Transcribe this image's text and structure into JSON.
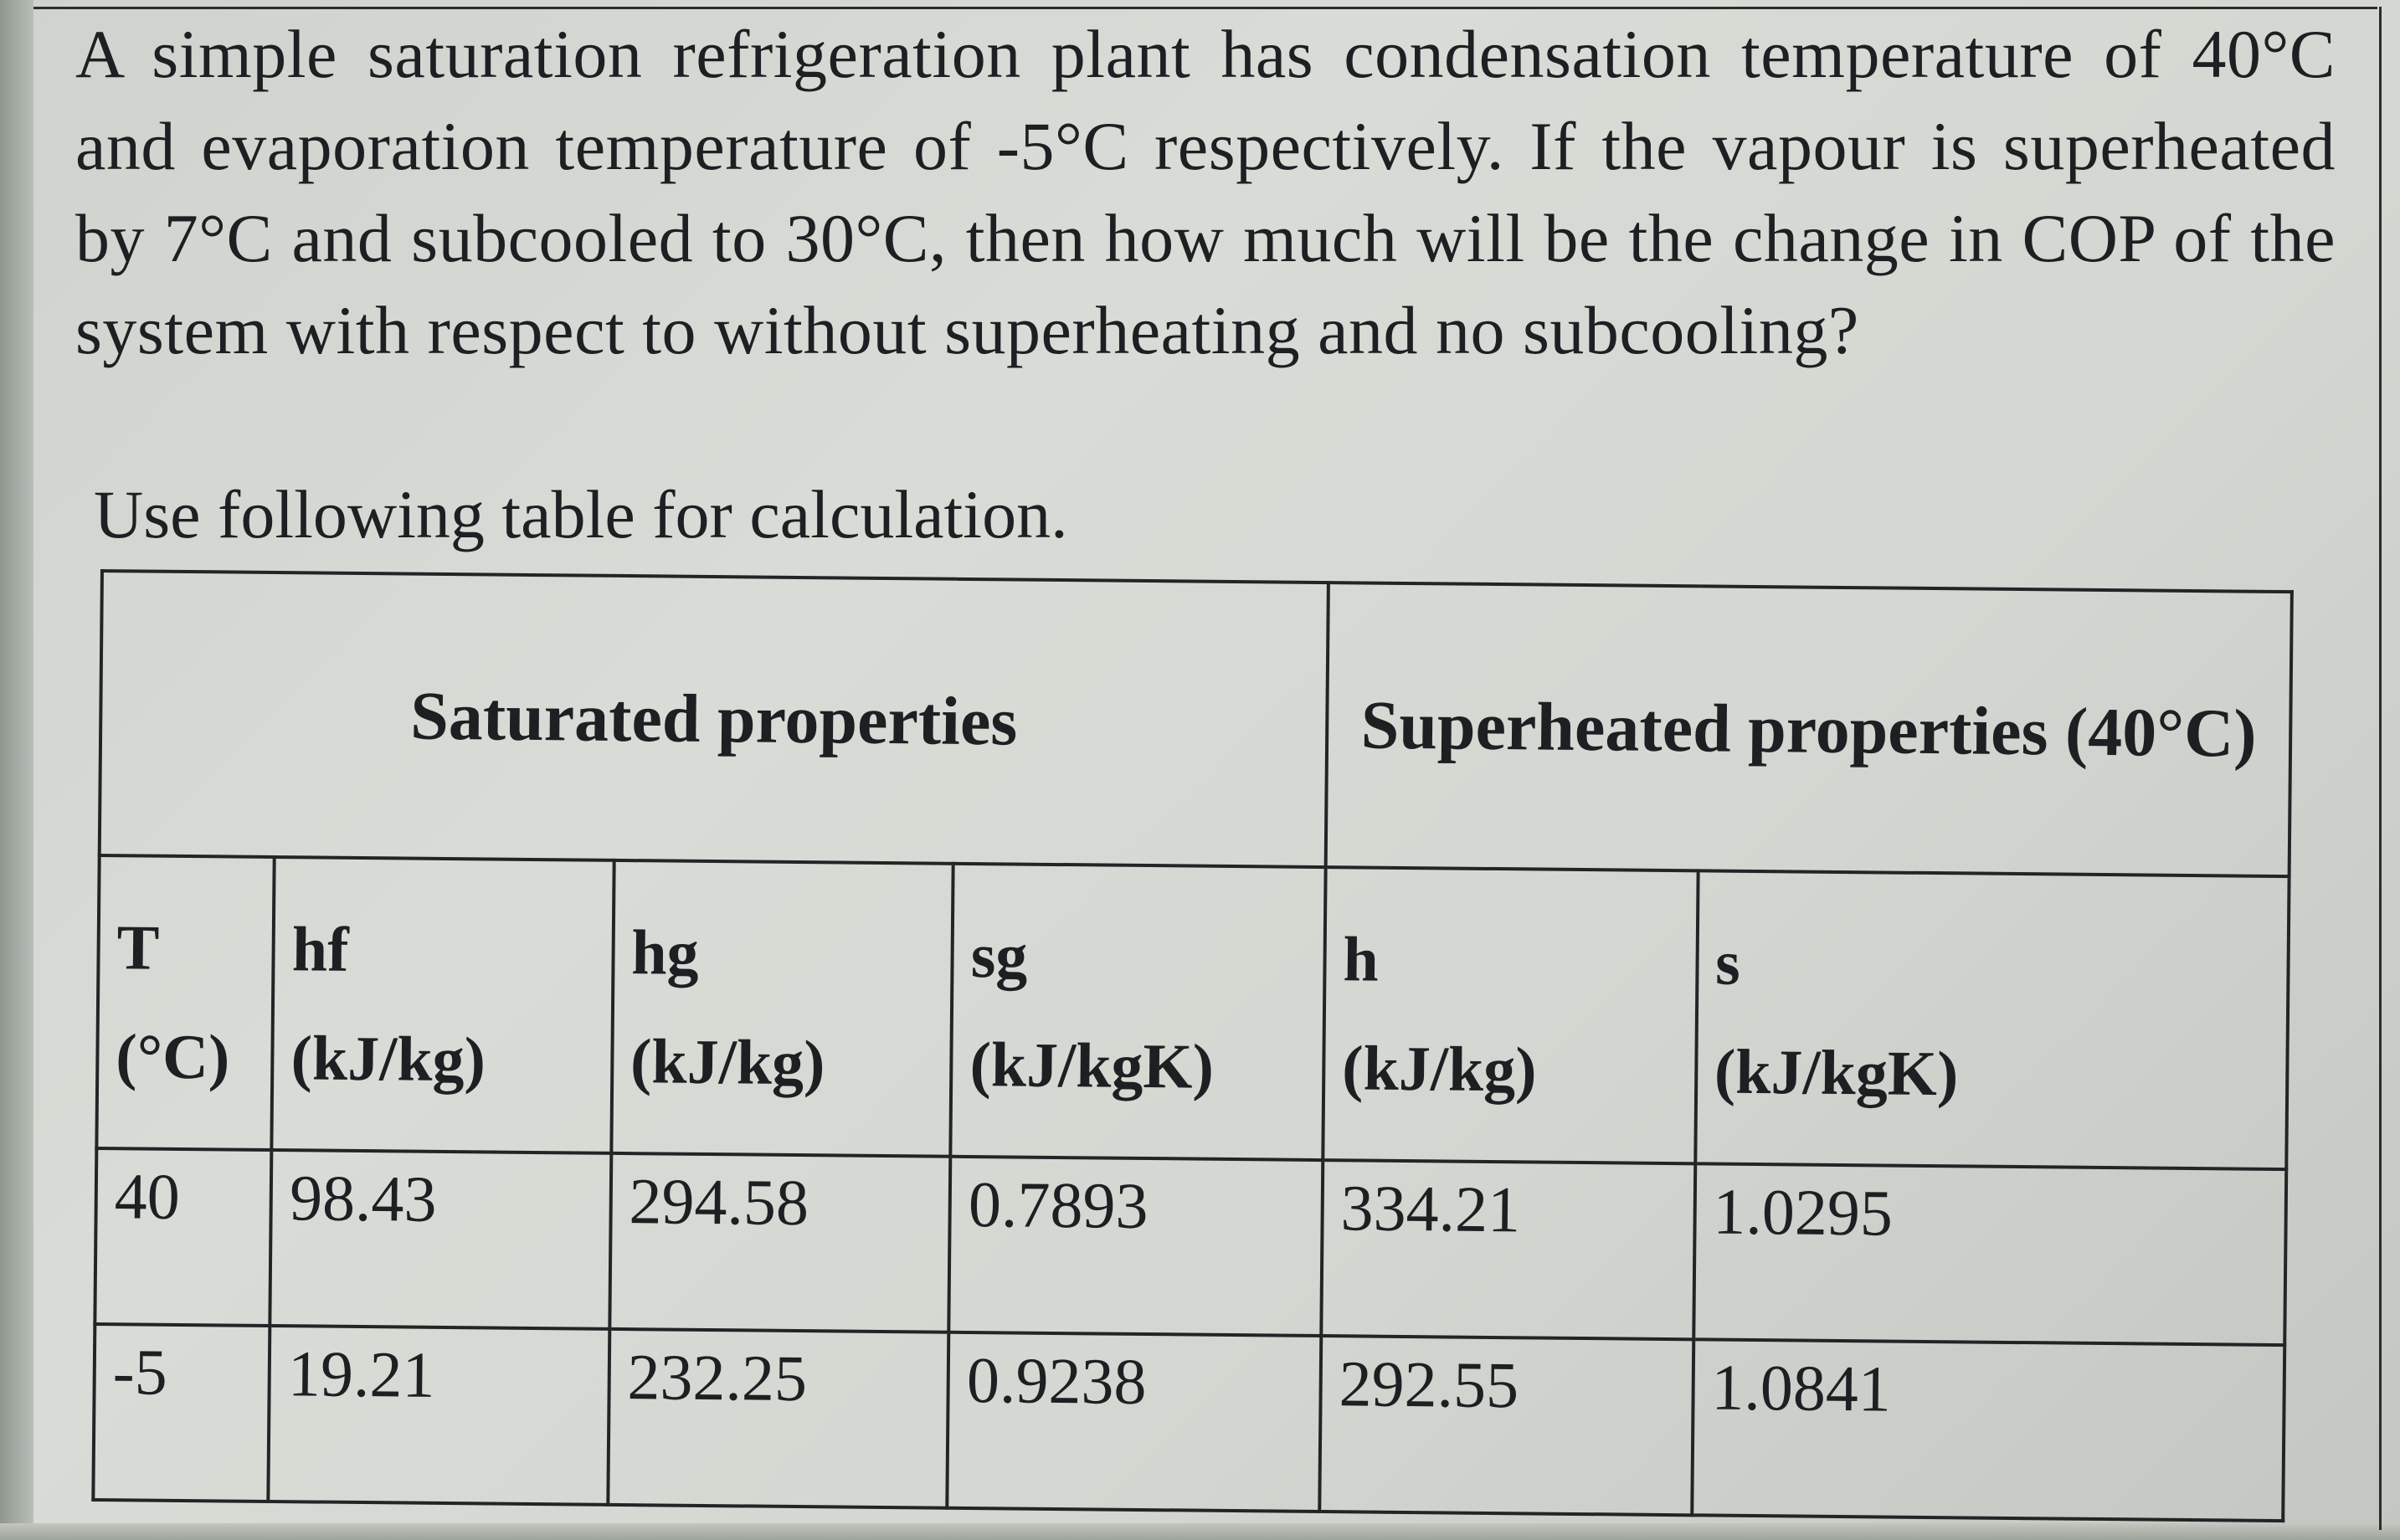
{
  "question": {
    "text": "A simple saturation refrigeration plant has condensation temperature of 40°C and evaporation temperature of -5°C respectively. If the vapour is superheated by 7°C and subcooled to 30°C, then how much will be the change in COP of the system with respect to without superheating and no subcooling?",
    "instruction": "Use following table for calculation."
  },
  "table": {
    "saturated_header": "Saturated properties",
    "superheated_header": "Superheated properties (40°C)",
    "columns": [
      {
        "symbol": "T",
        "unit": "(°C)"
      },
      {
        "symbol": "hf",
        "unit": "(kJ/kg)"
      },
      {
        "symbol": "hg",
        "unit": "(kJ/kg)"
      },
      {
        "symbol": "sg",
        "unit": "(kJ/kgK)"
      },
      {
        "symbol": "h",
        "unit": "(kJ/kg)"
      },
      {
        "symbol": "s",
        "unit": "(kJ/kgK)"
      }
    ],
    "rows": [
      [
        "40",
        "98.43",
        "294.58",
        "0.7893",
        "334.21",
        "1.0295"
      ],
      [
        "-5",
        "19.21",
        "232.25",
        "0.9238",
        "292.55",
        "1.0841"
      ]
    ]
  }
}
